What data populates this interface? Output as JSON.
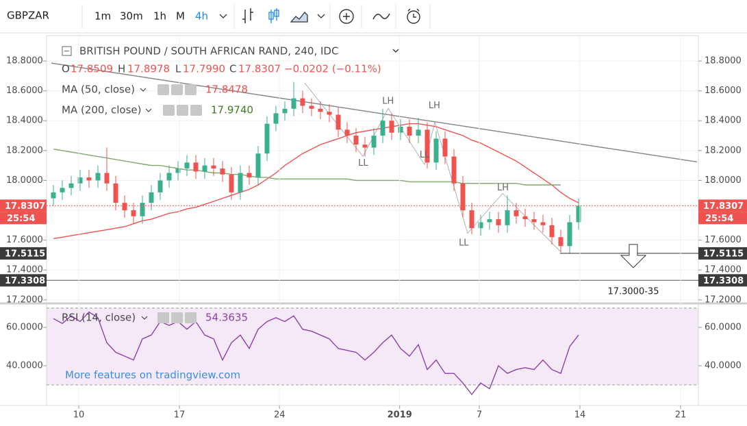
{
  "toolbar": {
    "symbol": "GBPZAR",
    "intervals": [
      "1m",
      "30m",
      "1h",
      "M",
      "4h"
    ],
    "active": 4
  },
  "legend": {
    "title": "BRITISH POUND / SOUTH AFRICAN RAND, 240, IDC",
    "open_label": "O",
    "open": "17.8509",
    "high_label": "H",
    "high": "17.8978",
    "low_label": "L",
    "low": "17.7990",
    "close_label": "C",
    "close": "17.8307",
    "change": "−0.0202 (−0.11%)"
  },
  "watermark": "More features on tradingview.com",
  "chart_data": [
    {
      "type": "candlestick",
      "up_color": "#3bb08f",
      "down_color": "#ef5350",
      "xlim": [
        -0.77,
        72.46
      ],
      "ylim": [
        17.19,
        18.97
      ],
      "yticks": [
        {
          "value": 17.2,
          "label": "17.2000"
        },
        {
          "value": 17.4,
          "label": "17.4000"
        },
        {
          "value": 17.6,
          "label": "17.6000"
        },
        {
          "value": 17.8,
          "label": "17.8000"
        },
        {
          "value": 18.0,
          "label": "18.0000"
        },
        {
          "value": 18.2,
          "label": "18.2000"
        },
        {
          "value": 18.4,
          "label": "18.4000"
        },
        {
          "value": 18.6,
          "label": "18.6000"
        },
        {
          "value": 18.8,
          "label": "18.8000"
        }
      ],
      "open": [
        17.88,
        17.92,
        17.95,
        17.98,
        18.02,
        18.0,
        18.05,
        17.98,
        17.85,
        17.8,
        17.76,
        17.85,
        17.92,
        18.0,
        18.05,
        18.08,
        18.12,
        18.06,
        18.1,
        18.08,
        18.04,
        17.92,
        18.05,
        18.02,
        18.18,
        18.38,
        18.45,
        18.48,
        18.55,
        18.5,
        18.48,
        18.46,
        18.44,
        18.34,
        18.3,
        18.24,
        18.22,
        18.3,
        18.4,
        18.32,
        18.36,
        18.3,
        18.34,
        18.12,
        18.28,
        18.16,
        17.98,
        17.8,
        17.68,
        17.72,
        17.74,
        17.7,
        17.8,
        17.76,
        17.74,
        17.72,
        17.7,
        17.62,
        17.56,
        17.72
      ],
      "high": [
        17.97,
        18.0,
        18.03,
        18.07,
        18.07,
        18.1,
        18.22,
        18.03,
        17.9,
        17.85,
        17.9,
        17.97,
        18.05,
        18.1,
        18.13,
        18.17,
        18.17,
        18.15,
        18.15,
        18.13,
        18.09,
        18.1,
        18.1,
        18.23,
        18.43,
        18.5,
        18.53,
        18.66,
        18.6,
        18.55,
        18.53,
        18.51,
        18.49,
        18.39,
        18.35,
        18.29,
        18.35,
        18.48,
        18.45,
        18.41,
        18.41,
        18.42,
        18.39,
        18.33,
        18.33,
        18.21,
        18.03,
        17.85,
        17.77,
        17.79,
        17.79,
        17.9,
        17.85,
        17.81,
        17.79,
        17.77,
        17.75,
        17.67,
        17.77,
        17.88
      ],
      "low": [
        17.83,
        17.87,
        17.9,
        17.93,
        17.95,
        17.95,
        17.93,
        17.8,
        17.75,
        17.71,
        17.71,
        17.8,
        17.87,
        17.95,
        18.0,
        18.03,
        18.01,
        18.01,
        18.03,
        17.99,
        17.87,
        17.87,
        17.97,
        17.97,
        18.13,
        18.33,
        18.4,
        18.43,
        18.45,
        18.43,
        18.41,
        18.39,
        18.29,
        18.25,
        18.19,
        18.16,
        18.17,
        18.25,
        18.27,
        18.27,
        18.25,
        18.25,
        18.08,
        18.07,
        18.11,
        17.93,
        17.75,
        17.64,
        17.63,
        17.67,
        17.65,
        17.65,
        17.71,
        17.69,
        17.67,
        17.65,
        17.57,
        17.52,
        17.51,
        17.67
      ],
      "close": [
        17.92,
        17.95,
        17.98,
        18.02,
        18.0,
        18.05,
        17.98,
        17.85,
        17.8,
        17.76,
        17.85,
        17.92,
        18.0,
        18.05,
        18.08,
        18.12,
        18.06,
        18.1,
        18.08,
        18.04,
        17.92,
        18.05,
        18.02,
        18.18,
        18.38,
        18.45,
        18.48,
        18.55,
        18.5,
        18.48,
        18.46,
        18.44,
        18.34,
        18.3,
        18.24,
        18.22,
        18.3,
        18.4,
        18.32,
        18.36,
        18.3,
        18.34,
        18.12,
        18.28,
        18.16,
        17.98,
        17.8,
        17.68,
        17.72,
        17.74,
        17.7,
        17.8,
        17.76,
        17.74,
        17.72,
        17.7,
        17.62,
        17.56,
        17.72,
        17.83
      ],
      "series": [
        {
          "name": "MA (50, close)",
          "color": "#ef5350",
          "last": "17.8478",
          "values": [
            17.61,
            17.62,
            17.63,
            17.64,
            17.65,
            17.66,
            17.67,
            17.68,
            17.69,
            17.71,
            17.73,
            17.74,
            17.76,
            17.78,
            17.79,
            17.81,
            17.82,
            17.84,
            17.86,
            17.88,
            17.9,
            17.92,
            17.94,
            17.97,
            18.01,
            18.05,
            18.1,
            18.14,
            18.18,
            18.21,
            18.24,
            18.26,
            18.28,
            18.3,
            18.32,
            18.33,
            18.34,
            18.35,
            18.36,
            18.37,
            18.38,
            18.38,
            18.37,
            18.36,
            18.34,
            18.32,
            18.3,
            18.27,
            18.25,
            18.22,
            18.19,
            18.16,
            18.13,
            18.09,
            18.05,
            18.01,
            17.97,
            17.92,
            17.88,
            17.85
          ]
        },
        {
          "name": "MA (200, close)",
          "color": "#7fa86e",
          "value_color": "#3f7d20",
          "last": "17.9740",
          "values": [
            18.21,
            18.2,
            18.19,
            18.18,
            18.17,
            18.16,
            18.15,
            18.14,
            18.13,
            18.12,
            18.11,
            18.1,
            18.1,
            18.09,
            18.08,
            18.07,
            18.07,
            18.06,
            18.05,
            18.05,
            18.04,
            18.04,
            18.03,
            18.02,
            18.02,
            18.01,
            18.01,
            18.01,
            18.01,
            18.01,
            18.01,
            18.01,
            18.01,
            18.01,
            18.0,
            18.0,
            18.0,
            18.0,
            18.0,
            18.0,
            17.99,
            17.99,
            17.99,
            17.99,
            17.99,
            17.99,
            17.98,
            17.98,
            17.98,
            17.98,
            17.98,
            17.98,
            17.98,
            17.97,
            17.97,
            17.97,
            17.97,
            17.97,
            null,
            null
          ]
        }
      ],
      "lines": [
        {
          "color": "#8a8a8a",
          "x": [
            -0.23,
            72.3
          ],
          "y": [
            18.786,
            18.124
          ]
        },
        {
          "color": "#a0a0a0",
          "x": [
            28.23,
            34.77,
            37.62,
            41.69,
            42.85,
            46.54,
            50.46,
            57.08
          ],
          "y": [
            18.653,
            18.161,
            18.483,
            18.106,
            18.391,
            17.646,
            17.913,
            17.517
          ]
        }
      ],
      "levels": [
        {
          "value": 17.5115,
          "from": 56.9,
          "color": "#333333"
        },
        {
          "value": 17.3308,
          "color": "#555555"
        }
      ],
      "price_tags": [
        {
          "value": 17.8307,
          "label": "17.8307",
          "color": "#ef5350",
          "sub": "25:54"
        },
        {
          "value": 17.5115,
          "label": "17.5115",
          "color": "#3a3a3a"
        },
        {
          "value": 17.3308,
          "label": "17.3308",
          "color": "#3a3a3a"
        }
      ],
      "annotations": [
        {
          "text": "LH",
          "x": 37.6,
          "y": 18.53
        },
        {
          "text": "LL",
          "x": 34.8,
          "y": 18.115
        },
        {
          "text": "LH",
          "x": 42.8,
          "y": 18.5
        },
        {
          "text": "LL",
          "x": 41.7,
          "y": 18.17
        },
        {
          "text": "LH",
          "x": 50.5,
          "y": 17.95
        },
        {
          "text": "LL",
          "x": 46.1,
          "y": 17.58
        }
      ],
      "target": {
        "text": "17.3000-35",
        "x": 65.15,
        "y": 17.255
      }
    },
    {
      "type": "line",
      "xlim": [
        -0.77,
        72.46
      ],
      "ylim": [
        19.3,
        71.4
      ],
      "yticks": [
        {
          "value": 40,
          "label": "40.0000"
        },
        {
          "value": 60,
          "label": "60.0000"
        }
      ],
      "band": [
        30,
        70
      ],
      "band_color": "#9c27b0",
      "xticks": [
        {
          "value": 2.85,
          "label": "10"
        },
        {
          "value": 14.15,
          "label": "17"
        },
        {
          "value": 25.4,
          "label": "24"
        },
        {
          "value": 38.9,
          "label": "2019",
          "bold": true
        },
        {
          "value": 47.85,
          "label": "7"
        },
        {
          "value": 59.15,
          "label": "14"
        },
        {
          "value": 70.46,
          "label": "21"
        }
      ],
      "series": [
        {
          "name": "RSI (14, close)",
          "color": "#8e3fad",
          "last": "54.3635",
          "values": [
            64.6,
            62,
            66,
            63,
            68,
            65,
            52,
            47,
            45,
            43,
            54,
            56,
            63,
            61,
            63,
            59,
            63,
            56,
            54,
            43,
            52,
            56,
            49,
            59,
            63,
            65,
            63,
            66,
            59,
            58,
            56,
            54,
            49,
            48,
            47,
            43,
            47,
            52,
            56,
            49,
            45,
            51,
            38,
            43,
            36,
            36,
            31,
            25,
            31,
            28,
            40,
            36,
            38,
            39,
            38,
            43,
            38,
            36,
            50,
            56
          ]
        }
      ]
    }
  ]
}
